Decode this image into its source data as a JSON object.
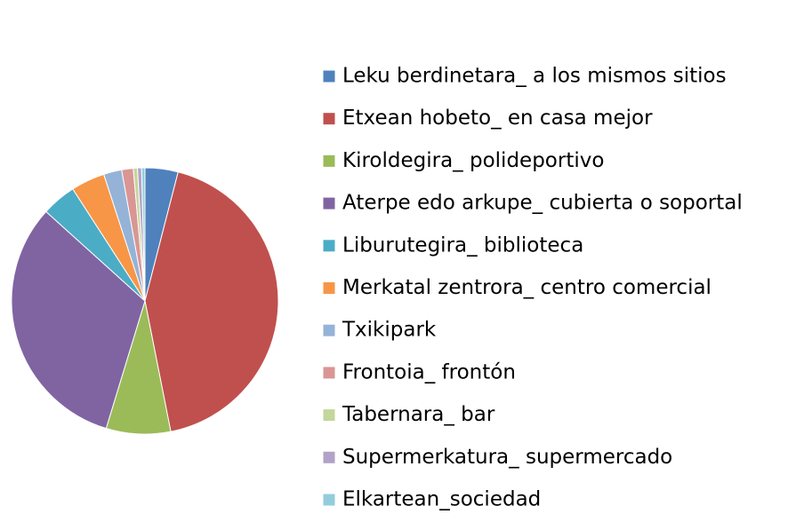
{
  "chart_data": {
    "type": "pie",
    "categories": [
      "Leku berdinetara_ a los mismos sitios",
      "Etxean hobeto_ en casa mejor",
      "Kiroldegira_ polideportivo",
      "Aterpe edo arkupe_ cubierta o soportal",
      "Liburutegira_ biblioteca",
      "Merkatal zentrora_ centro comercial",
      "Txikipark",
      "Frontoia_ frontón",
      "Tabernara_ bar",
      "Supermerkatura_ supermercado",
      "Elkartean_sociedad"
    ],
    "values": [
      4,
      42.9,
      7.8,
      32,
      4.2,
      4.1,
      2.2,
      1.4,
      0.5,
      0.5,
      0.4
    ],
    "colors": [
      "#4f81bd",
      "#c0504d",
      "#9bbb59",
      "#8064a2",
      "#4bacc6",
      "#f79646",
      "#95b3d7",
      "#d99694",
      "#c3d69b",
      "#b3a2c7",
      "#93cddd"
    ],
    "legend": "right"
  }
}
